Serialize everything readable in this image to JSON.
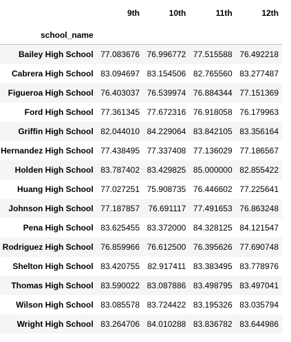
{
  "table": {
    "index_name": "school_name",
    "columns": [
      "9th",
      "10th",
      "11th",
      "12th"
    ],
    "rows": [
      {
        "school": "Bailey High School",
        "values": [
          "77.083676",
          "76.996772",
          "77.515588",
          "76.492218"
        ]
      },
      {
        "school": "Cabrera High School",
        "values": [
          "83.094697",
          "83.154506",
          "82.765560",
          "83.277487"
        ]
      },
      {
        "school": "Figueroa High School",
        "values": [
          "76.403037",
          "76.539974",
          "76.884344",
          "77.151369"
        ]
      },
      {
        "school": "Ford High School",
        "values": [
          "77.361345",
          "77.672316",
          "76.918058",
          "76.179963"
        ]
      },
      {
        "school": "Griffin High School",
        "values": [
          "82.044010",
          "84.229064",
          "83.842105",
          "83.356164"
        ]
      },
      {
        "school": "Hernandez High School",
        "values": [
          "77.438495",
          "77.337408",
          "77.136029",
          "77.186567"
        ]
      },
      {
        "school": "Holden High School",
        "values": [
          "83.787402",
          "83.429825",
          "85.000000",
          "82.855422"
        ]
      },
      {
        "school": "Huang High School",
        "values": [
          "77.027251",
          "75.908735",
          "76.446602",
          "77.225641"
        ]
      },
      {
        "school": "Johnson High School",
        "values": [
          "77.187857",
          "76.691117",
          "77.491653",
          "76.863248"
        ]
      },
      {
        "school": "Pena High School",
        "values": [
          "83.625455",
          "83.372000",
          "84.328125",
          "84.121547"
        ]
      },
      {
        "school": "Rodriguez High School",
        "values": [
          "76.859966",
          "76.612500",
          "76.395626",
          "77.690748"
        ]
      },
      {
        "school": "Shelton High School",
        "values": [
          "83.420755",
          "82.917411",
          "83.383495",
          "83.778976"
        ]
      },
      {
        "school": "Thomas High School",
        "values": [
          "83.590022",
          "83.087886",
          "83.498795",
          "83.497041"
        ]
      },
      {
        "school": "Wilson High School",
        "values": [
          "83.085578",
          "83.724422",
          "83.195326",
          "83.035794"
        ]
      },
      {
        "school": "Wright High School",
        "values": [
          "83.264706",
          "84.010288",
          "83.836782",
          "83.644986"
        ]
      }
    ]
  }
}
